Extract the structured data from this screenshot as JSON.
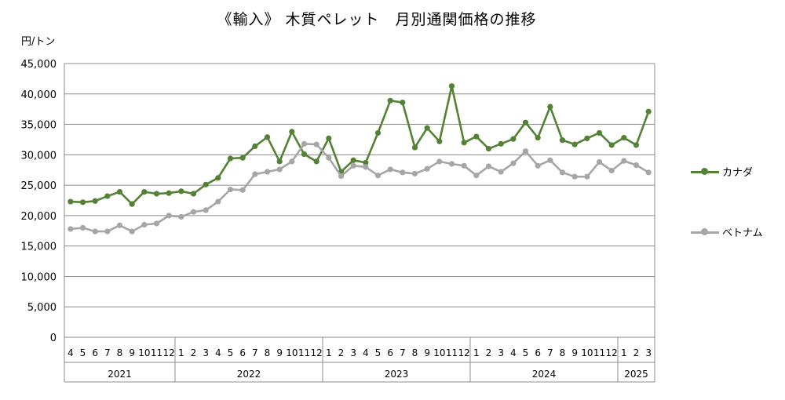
{
  "title": "《輸入》 木質ペレット　月別通関価格の推移",
  "chart_data": {
    "type": "line",
    "title": "《輸入》 木質ペレット　月別通関価格の推移",
    "ylabel": "円/トン",
    "ylim": [
      0,
      45000
    ],
    "yticks": [
      0,
      5000,
      10000,
      15000,
      20000,
      25000,
      30000,
      35000,
      40000,
      45000
    ],
    "ytick_labels": [
      "0",
      "5,000",
      "10,000",
      "15,000",
      "20,000",
      "25,000",
      "30,000",
      "35,000",
      "40,000",
      "45,000"
    ],
    "grid": true,
    "legend": "right",
    "month_labels": [
      "4",
      "5",
      "6",
      "7",
      "8",
      "9",
      "10",
      "11",
      "12",
      "1",
      "2",
      "3",
      "4",
      "5",
      "6",
      "7",
      "8",
      "9",
      "10",
      "11",
      "12",
      "1",
      "2",
      "3",
      "4",
      "5",
      "6",
      "7",
      "8",
      "9",
      "10",
      "11",
      "12",
      "1",
      "2",
      "3",
      "4",
      "5",
      "6",
      "7",
      "8",
      "9",
      "10",
      "11",
      "12",
      "1",
      "2",
      "3"
    ],
    "years": [
      {
        "label": "2021",
        "months": 9
      },
      {
        "label": "2022",
        "months": 12
      },
      {
        "label": "2023",
        "months": 12
      },
      {
        "label": "2024",
        "months": 12
      },
      {
        "label": "2025",
        "months": 3
      }
    ],
    "series": [
      {
        "name": "カナダ",
        "color": "#548235",
        "values": [
          22300,
          22200,
          22400,
          23200,
          23900,
          21900,
          23900,
          23600,
          23700,
          24000,
          23600,
          25100,
          26200,
          29400,
          29500,
          31400,
          32900,
          28900,
          33800,
          30100,
          28900,
          32700,
          27200,
          29100,
          28700,
          33600,
          38900,
          38600,
          31200,
          34400,
          32200,
          41300,
          32000,
          33000,
          31000,
          31800,
          32600,
          35300,
          32800,
          37900,
          32400,
          31700,
          32700,
          33600,
          31600,
          32800,
          31600,
          37100
        ]
      },
      {
        "name": "ベトナム",
        "color": "#a6a6a6",
        "values": [
          17800,
          18000,
          17400,
          17400,
          18400,
          17400,
          18500,
          18700,
          20000,
          19800,
          20600,
          20900,
          22300,
          24300,
          24200,
          26800,
          27200,
          27600,
          28900,
          31800,
          31700,
          29500,
          26500,
          28200,
          28000,
          26600,
          27600,
          27100,
          26900,
          27700,
          28900,
          28500,
          28200,
          26600,
          28100,
          27200,
          28600,
          30600,
          28200,
          29100,
          27100,
          26400,
          26400,
          28800,
          27400,
          29000,
          28300,
          27100
        ]
      }
    ]
  }
}
